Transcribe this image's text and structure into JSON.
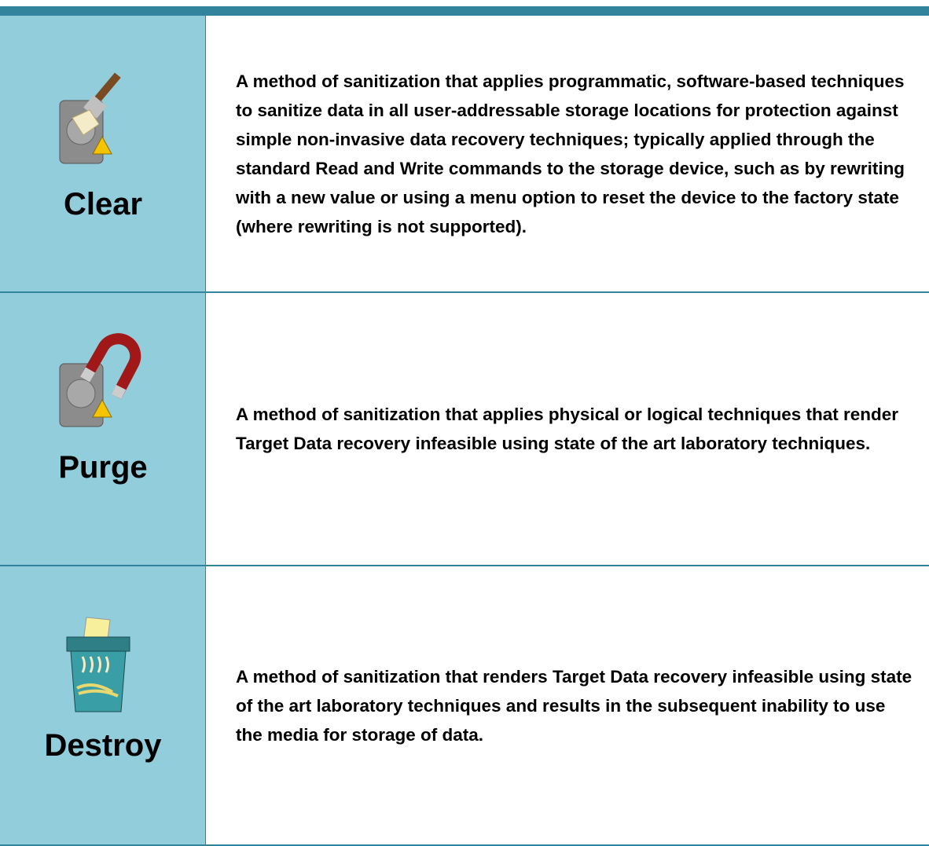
{
  "rows": [
    {
      "label": "Clear",
      "description": "A method of sanitization that applies programmatic, software-based techniques to sanitize data in all user-addressable storage locations for protection against simple non-invasive data recovery techniques; typically applied through the standard Read and Write commands to the storage device, such as by rewriting with a new value or using a menu option to reset the device to the factory state (where rewriting is not supported)."
    },
    {
      "label": "Purge",
      "description": "A method of sanitization that applies physical or logical techniques that render Target Data recovery infeasible using state of the art laboratory techniques."
    },
    {
      "label": "Destroy",
      "description": "A method of sanitization that renders Target Data recovery infeasible using state of the art laboratory techniques and results in the subsequent inability to use the media for storage of data."
    }
  ]
}
